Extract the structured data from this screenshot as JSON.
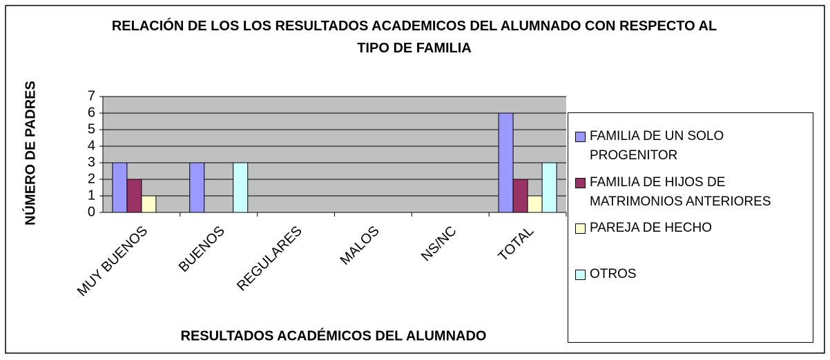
{
  "chart_data": {
    "type": "bar",
    "title": "RELACIÓN DE LOS LOS RESULTADOS ACADEMICOS DEL ALUMNADO CON RESPECTO AL TIPO DE FAMILIA",
    "x_label": "RESULTADOS ACADÉMICOS DEL ALUMNADO",
    "y_label": "NÚMERO DE PADRES",
    "categories": [
      "MUY BUENOS",
      "BUENOS",
      "REGULARES",
      "MALOS",
      "NS/NC",
      "TOTAL"
    ],
    "series": [
      {
        "name": "FAMILIA DE UN SOLO PROGENITOR",
        "color": "#9999ff",
        "values": [
          3,
          3,
          0,
          0,
          0,
          6
        ]
      },
      {
        "name": "FAMILIA DE HIJOS DE MATRIMONIOS ANTERIORES",
        "color": "#993366",
        "values": [
          2,
          0,
          0,
          0,
          0,
          2
        ]
      },
      {
        "name": "PAREJA DE HECHO",
        "color": "#ffffcc",
        "values": [
          1,
          0,
          0,
          0,
          0,
          1
        ]
      },
      {
        "name": "OTROS",
        "color": "#ccffff",
        "values": [
          0,
          3,
          0,
          0,
          0,
          3
        ]
      }
    ],
    "ylim": [
      0,
      7
    ],
    "yticks": [
      0,
      1,
      2,
      3,
      4,
      5,
      6,
      7
    ],
    "grid": true,
    "legend": "right"
  }
}
